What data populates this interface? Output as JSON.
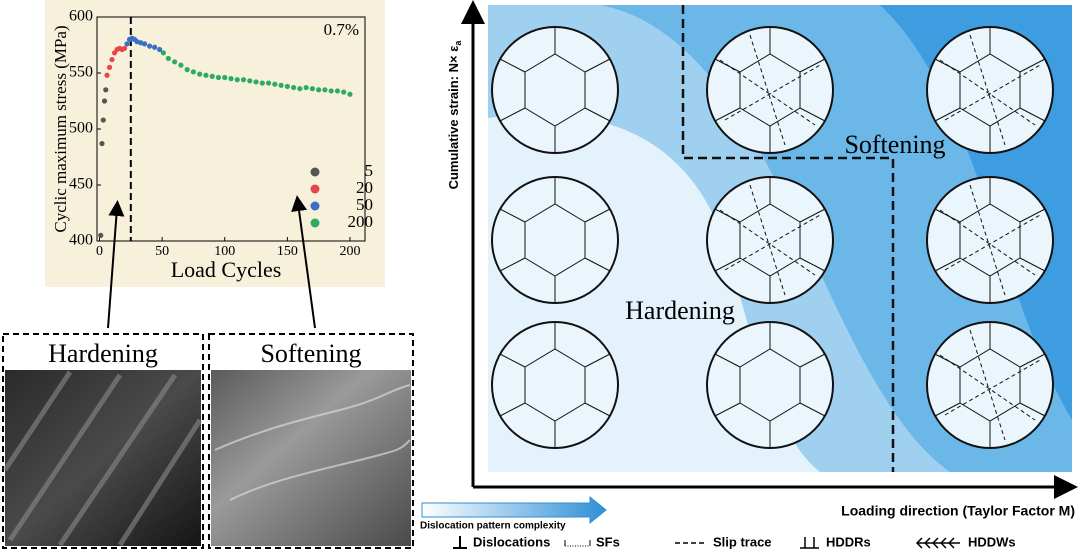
{
  "chart_data": {
    "type": "scatter",
    "xlabel": "Load Cycles",
    "ylabel": "Cyclic maximum stress (MPa)",
    "annotation": "0.7%",
    "reference_line_x": 25,
    "xlim": [
      -2,
      212
    ],
    "ylim": [
      400,
      600
    ],
    "xticks": [
      0,
      50,
      100,
      150,
      200
    ],
    "yticks": [
      400,
      450,
      500,
      550,
      600
    ],
    "series": [
      {
        "name": "5",
        "color": "#555555",
        "x": [
          1,
          2,
          3,
          4,
          5
        ],
        "values": [
          405,
          487,
          508,
          525,
          535
        ]
      },
      {
        "name": "20",
        "color": "#e8464a",
        "x": [
          6,
          8,
          10,
          12,
          14,
          16,
          18,
          20
        ],
        "values": [
          548,
          555,
          562,
          568,
          571,
          572,
          571,
          572
        ]
      },
      {
        "name": "50",
        "color": "#3a6fc4",
        "x": [
          22,
          24,
          26,
          28,
          30,
          33,
          36,
          40,
          44,
          48
        ],
        "values": [
          576,
          580,
          581,
          580,
          578,
          577,
          576,
          574,
          573,
          571
        ]
      },
      {
        "name": "200",
        "color": "#2eaa62",
        "x": [
          51,
          55,
          60,
          65,
          70,
          75,
          80,
          85,
          90,
          95,
          100,
          105,
          110,
          115,
          120,
          125,
          130,
          135,
          140,
          145,
          150,
          155,
          160,
          165,
          170,
          175,
          180,
          185,
          190,
          195,
          200
        ],
        "values": [
          568,
          563,
          560,
          557,
          553,
          551,
          549,
          548,
          547,
          546,
          546,
          545,
          544,
          544,
          543,
          542,
          541,
          541,
          540,
          539,
          538,
          537,
          536,
          537,
          536,
          535,
          535,
          534,
          534,
          533,
          531
        ]
      }
    ]
  },
  "panels": {
    "hardening_label": "Hardening",
    "softening_label": "Softening"
  },
  "diagram": {
    "y_axis_label": "Cumulative strain: N× ε",
    "y_axis_label_subscript": "a",
    "x_axis_label": "Loading direction (Taylor Factor M)",
    "regions": [
      "Hardening",
      "Softening"
    ],
    "arrow_label": "Dislocation pattern complexity",
    "legend": [
      "Dislocations",
      "SFs",
      "Slip trace",
      "HDDRs",
      "HDDWs"
    ]
  }
}
